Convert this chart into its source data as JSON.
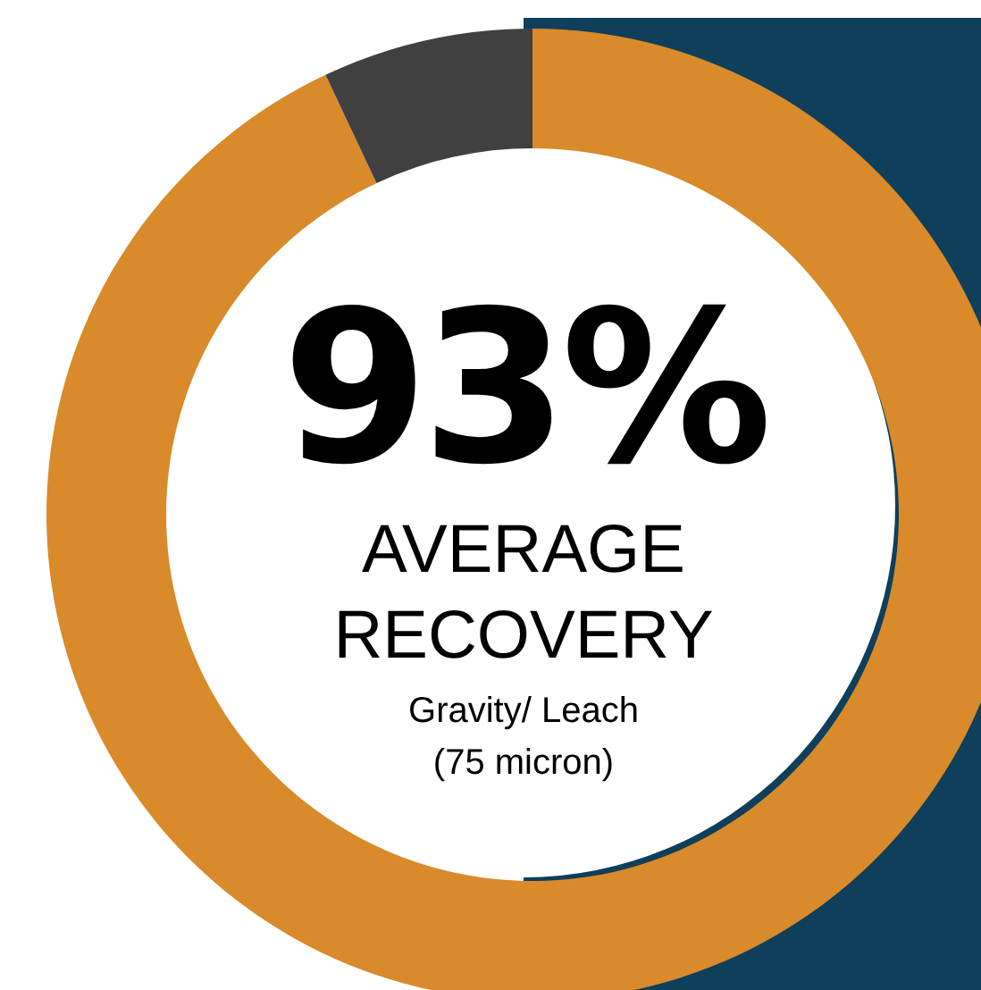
{
  "chart_data": {
    "type": "donut",
    "title": "AVERAGE RECOVERY",
    "annotations": [
      "Gravity/ Leach",
      "(75 micron)"
    ],
    "categories": [
      null,
      null
    ],
    "values": [
      93,
      7
    ],
    "colors": [
      "#d98a2b",
      "#404040"
    ],
    "value_labels": [
      "93%",
      null
    ]
  }
}
